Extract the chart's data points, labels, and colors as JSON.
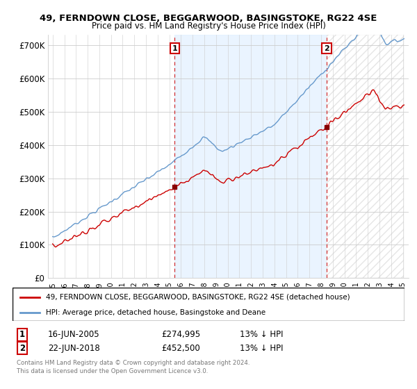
{
  "title_line1": "49, FERNDOWN CLOSE, BEGGARWOOD, BASINGSTOKE, RG22 4SE",
  "title_line2": "Price paid vs. HM Land Registry's House Price Index (HPI)",
  "yticks": [
    0,
    100000,
    200000,
    300000,
    400000,
    500000,
    600000,
    700000
  ],
  "ytick_labels": [
    "£0",
    "£100K",
    "£200K",
    "£300K",
    "£400K",
    "£500K",
    "£600K",
    "£700K"
  ],
  "sale1_year": 2005.45,
  "sale1_price": 274995,
  "sale2_year": 2018.47,
  "sale2_price": 452500,
  "legend_line1": "49, FERNDOWN CLOSE, BEGGARWOOD, BASINGSTOKE, RG22 4SE (detached house)",
  "legend_line2": "HPI: Average price, detached house, Basingstoke and Deane",
  "line_color_red": "#cc0000",
  "line_color_blue": "#6699cc",
  "fill_color_blue": "#ddeeff",
  "footer_line1": "Contains HM Land Registry data © Crown copyright and database right 2024.",
  "footer_line2": "This data is licensed under the Open Government Licence v3.0."
}
